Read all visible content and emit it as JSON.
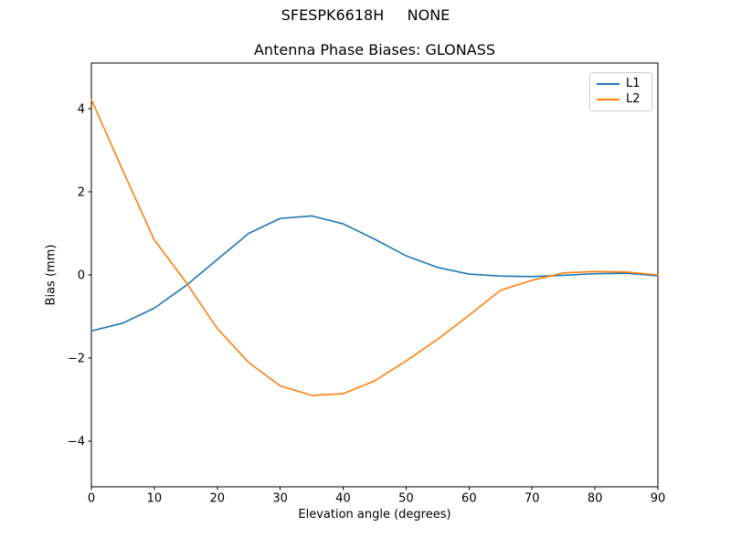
{
  "window": {
    "suptitle": "SFESPK6618H     NONE"
  },
  "chart_data": {
    "type": "line",
    "title": "Antenna Phase Biases: GLONASS",
    "xlabel": "Elevation angle (degrees)",
    "ylabel": "Bias (mm)",
    "x": [
      0,
      5,
      10,
      15,
      20,
      25,
      30,
      35,
      40,
      45,
      50,
      55,
      60,
      65,
      70,
      75,
      80,
      85,
      90
    ],
    "series": [
      {
        "name": "L1",
        "color": "#1f77b4",
        "values": [
          -1.35,
          -1.16,
          -0.8,
          -0.26,
          0.37,
          1.0,
          1.36,
          1.42,
          1.23,
          0.86,
          0.46,
          0.18,
          0.02,
          -0.03,
          -0.04,
          -0.01,
          0.03,
          0.04,
          -0.02
        ]
      },
      {
        "name": "L2",
        "color": "#ff7f0e",
        "values": [
          4.22,
          2.51,
          0.84,
          -0.17,
          -1.29,
          -2.11,
          -2.67,
          -2.9,
          -2.86,
          -2.55,
          -2.07,
          -1.55,
          -0.97,
          -0.37,
          -0.13,
          0.05,
          0.08,
          0.07,
          0.0
        ]
      }
    ],
    "xlim": [
      0,
      90
    ],
    "ylim": [
      -5.1,
      5.1
    ],
    "xticks": [
      0,
      10,
      20,
      30,
      40,
      50,
      60,
      70,
      80,
      90
    ],
    "yticks": [
      -4,
      -2,
      0,
      2,
      4
    ],
    "grid": false,
    "legend_position": "upper right",
    "axis_color": "#000000",
    "background_color": "#ffffff"
  }
}
